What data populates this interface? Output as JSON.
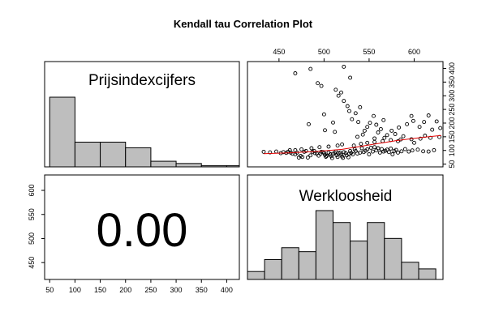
{
  "chart_data": {
    "type": "scatter-matrix",
    "title": "Kendall tau Correlation Plot",
    "variables": [
      "Prijsindexcijfers",
      "Werkloosheid"
    ],
    "correlation_label": "0.00",
    "axes": {
      "prijs": {
        "range": [
          40,
          425
        ],
        "ticks": [
          50,
          100,
          150,
          200,
          250,
          300,
          350,
          400
        ]
      },
      "werk": {
        "range": [
          415,
          632
        ],
        "ticks": [
          450,
          500,
          550,
          600
        ]
      }
    },
    "histograms": [
      {
        "variable": "Prijsindexcijfers",
        "bins": [
          [
            50,
            100
          ],
          [
            100,
            150
          ],
          [
            150,
            200
          ],
          [
            200,
            250
          ],
          [
            250,
            300
          ],
          [
            300,
            350
          ],
          [
            350,
            400
          ],
          [
            400,
            450
          ]
        ],
        "counts": [
          62,
          22,
          22,
          17,
          5,
          3,
          1,
          1
        ]
      },
      {
        "variable": "Werkloosheid",
        "bins": [
          [
            415,
            434
          ],
          [
            434,
            453
          ],
          [
            453,
            472
          ],
          [
            472,
            491
          ],
          [
            491,
            510
          ],
          [
            510,
            529
          ],
          [
            529,
            548
          ],
          [
            548,
            567
          ],
          [
            567,
            586
          ],
          [
            586,
            605
          ],
          [
            605,
            624
          ],
          [
            624,
            643
          ]
        ],
        "counts": [
          6,
          15,
          24,
          21,
          52,
          43,
          29,
          43,
          31,
          13,
          8,
          0
        ]
      }
    ],
    "scatter": {
      "x_variable": "Werkloosheid",
      "y_variable": "Prijsindexcijfers",
      "points": [
        [
          433,
          95
        ],
        [
          440,
          93
        ],
        [
          447,
          96
        ],
        [
          452,
          90
        ],
        [
          455,
          94
        ],
        [
          458,
          91
        ],
        [
          460,
          95
        ],
        [
          462,
          101
        ],
        [
          463,
          92
        ],
        [
          465,
          88
        ],
        [
          468,
          86
        ],
        [
          470,
          92
        ],
        [
          472,
          74
        ],
        [
          474,
          80
        ],
        [
          476,
          76
        ],
        [
          478,
          95
        ],
        [
          480,
          98
        ],
        [
          482,
          74
        ],
        [
          485,
          82
        ],
        [
          487,
          95
        ],
        [
          489,
          98
        ],
        [
          490,
          90
        ],
        [
          492,
          89
        ],
        [
          494,
          81
        ],
        [
          496,
          88
        ],
        [
          497,
          95
        ],
        [
          499,
          94
        ],
        [
          500,
          91
        ],
        [
          501,
          84
        ],
        [
          502,
          77
        ],
        [
          503,
          80
        ],
        [
          505,
          92
        ],
        [
          507,
          86
        ],
        [
          508,
          79
        ],
        [
          509,
          72
        ],
        [
          510,
          88
        ],
        [
          512,
          91
        ],
        [
          513,
          96
        ],
        [
          514,
          83
        ],
        [
          515,
          76
        ],
        [
          516,
          90
        ],
        [
          518,
          92
        ],
        [
          519,
          85
        ],
        [
          520,
          78
        ],
        [
          521,
          73
        ],
        [
          522,
          94
        ],
        [
          524,
          90
        ],
        [
          525,
          82
        ],
        [
          527,
          75
        ],
        [
          528,
          88
        ],
        [
          529,
          98
        ],
        [
          530,
          91
        ],
        [
          532,
          86
        ],
        [
          534,
          104
        ],
        [
          535,
          98
        ],
        [
          537,
          89
        ],
        [
          540,
          92
        ],
        [
          542,
          108
        ],
        [
          544,
          94
        ],
        [
          546,
          99
        ],
        [
          548,
          104
        ],
        [
          550,
          86
        ],
        [
          552,
          110
        ],
        [
          554,
          96
        ],
        [
          556,
          112
        ],
        [
          558,
          100
        ],
        [
          560,
          108
        ],
        [
          562,
          92
        ],
        [
          564,
          105
        ],
        [
          566,
          96
        ],
        [
          568,
          99
        ],
        [
          570,
          103
        ],
        [
          572,
          94
        ],
        [
          574,
          107
        ],
        [
          576,
          86
        ],
        [
          578,
          98
        ],
        [
          580,
          102
        ],
        [
          582,
          92
        ],
        [
          586,
          97
        ],
        [
          590,
          105
        ],
        [
          594,
          96
        ],
        [
          598,
          100
        ],
        [
          604,
          103
        ],
        [
          610,
          97
        ],
        [
          616,
          96
        ],
        [
          622,
          101
        ],
        [
          468,
          101
        ],
        [
          475,
          104
        ],
        [
          486,
          108
        ],
        [
          495,
          112
        ],
        [
          505,
          114
        ],
        [
          515,
          118
        ],
        [
          520,
          122
        ],
        [
          533,
          118
        ],
        [
          541,
          124
        ],
        [
          548,
          128
        ],
        [
          556,
          131
        ],
        [
          565,
          134
        ],
        [
          574,
          138
        ],
        [
          585,
          140
        ],
        [
          597,
          141
        ],
        [
          607,
          143
        ],
        [
          618,
          146
        ],
        [
          628,
          149
        ],
        [
          500,
          232
        ],
        [
          510,
          202
        ],
        [
          513,
          322
        ],
        [
          516,
          300
        ],
        [
          519,
          312
        ],
        [
          522,
          281
        ],
        [
          526,
          262
        ],
        [
          528,
          244
        ],
        [
          531,
          214
        ],
        [
          535,
          236
        ],
        [
          538,
          204
        ],
        [
          540,
          258
        ],
        [
          545,
          172
        ],
        [
          548,
          186
        ],
        [
          551,
          201
        ],
        [
          555,
          226
        ],
        [
          558,
          194
        ],
        [
          560,
          166
        ],
        [
          563,
          178
        ],
        [
          566,
          211
        ],
        [
          570,
          156
        ],
        [
          575,
          172
        ],
        [
          579,
          160
        ],
        [
          583,
          184
        ],
        [
          588,
          152
        ],
        [
          592,
          196
        ],
        [
          597,
          226
        ],
        [
          599,
          208
        ],
        [
          606,
          186
        ],
        [
          611,
          204
        ],
        [
          616,
          228
        ],
        [
          620,
          176
        ],
        [
          625,
          206
        ],
        [
          629,
          182
        ],
        [
          468,
          382
        ],
        [
          485,
          398
        ],
        [
          493,
          346
        ],
        [
          497,
          336
        ],
        [
          522,
          406
        ],
        [
          529,
          366
        ],
        [
          483,
          196
        ],
        [
          501,
          174
        ],
        [
          512,
          168
        ],
        [
          537,
          150
        ],
        [
          543,
          158
        ],
        [
          556,
          144
        ],
        [
          567,
          146
        ],
        [
          582,
          134
        ],
        [
          600,
          128
        ],
        [
          612,
          154
        ]
      ],
      "trend_line": {
        "color": "#e00000",
        "points": [
          [
            433,
            88
          ],
          [
            460,
            91
          ],
          [
            490,
            96
          ],
          [
            520,
            104
          ],
          [
            550,
            120
          ],
          [
            580,
            136
          ],
          [
            610,
            148
          ],
          [
            630,
            155
          ]
        ]
      }
    }
  },
  "colors": {
    "bar_fill": "#bebebe",
    "trend": "#e00000"
  }
}
